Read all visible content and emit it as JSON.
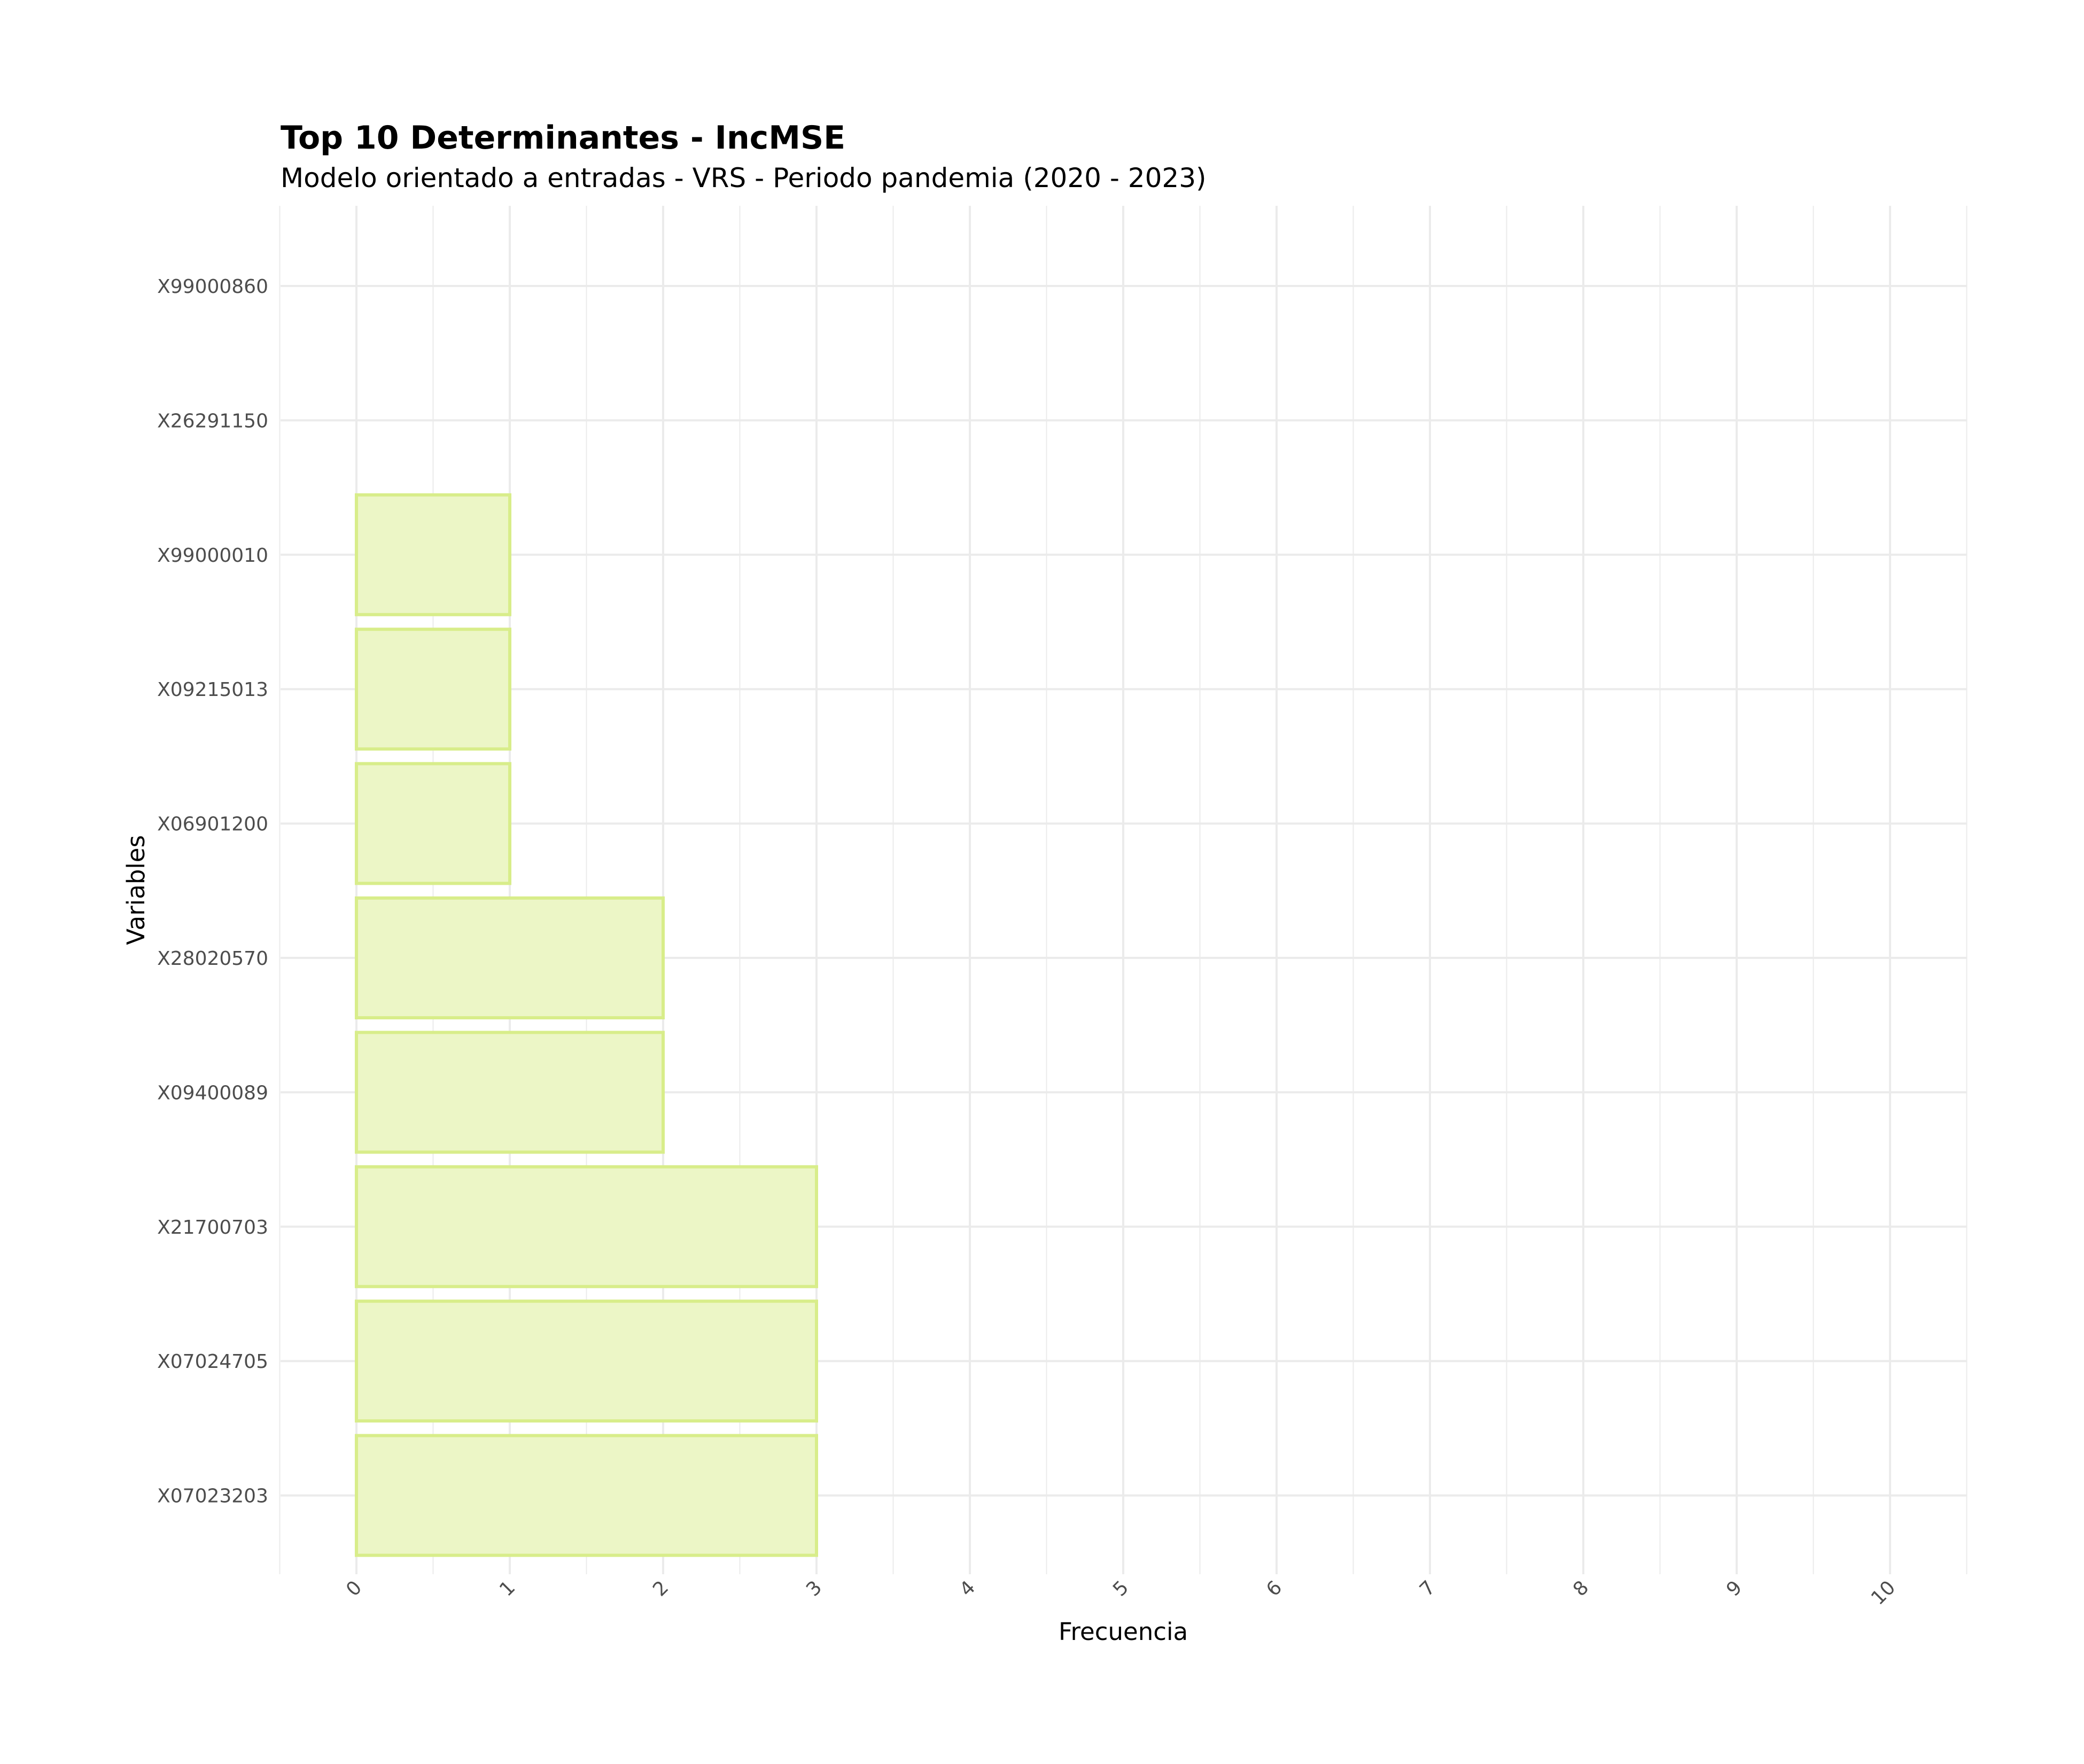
{
  "chart_data": {
    "type": "bar",
    "orientation": "horizontal",
    "title": "Top 10 Determinantes - IncMSE",
    "subtitle": "Modelo orientado a entradas - VRS - Periodo pandemia (2020 - 2023)",
    "xlabel": "Frecuencia",
    "ylabel": "Variables",
    "categories": [
      "X07023203",
      "X07024705",
      "X21700703",
      "X09400089",
      "X28020570",
      "X06901200",
      "X09215013",
      "X99000010",
      "X26291150",
      "X99000860"
    ],
    "values": [
      3,
      3,
      3,
      2,
      2,
      1,
      1,
      1,
      0,
      0
    ],
    "x_ticks": [
      "0",
      "1",
      "2",
      "3",
      "4",
      "5",
      "6",
      "7",
      "8",
      "9",
      "10"
    ],
    "xlim": [
      -0.5,
      10.5
    ],
    "grid": true,
    "legend": "none",
    "colors": {
      "bar_fill": "#ecf6c6",
      "bar_stroke": "#d8ed8a",
      "grid": "#ebebeb",
      "tick_text": "#4d4d4d",
      "text": "#000000"
    }
  }
}
